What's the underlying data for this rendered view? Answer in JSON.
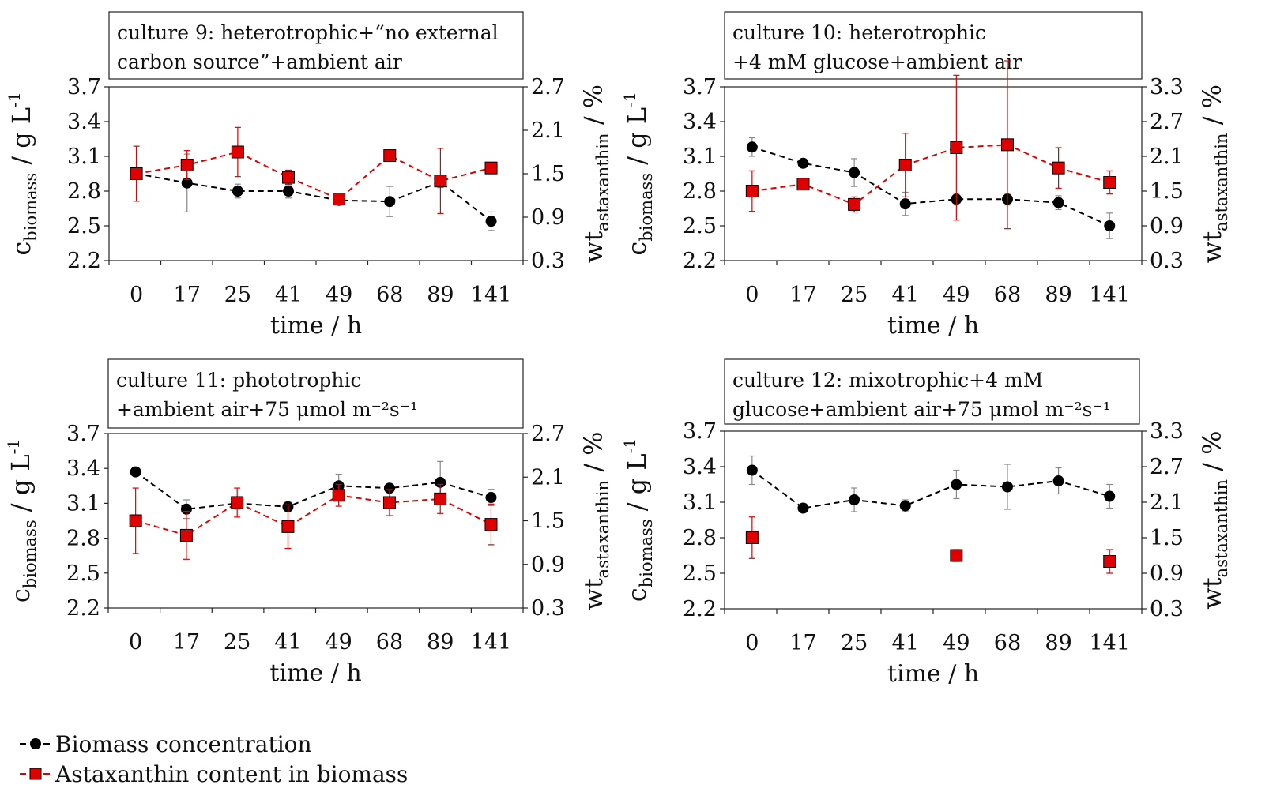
{
  "legend": {
    "biomass_label": "Biomass concentration",
    "astaxanthin_label": "Astaxanthin content in biomass"
  },
  "colors": {
    "biomass": "#000000",
    "astaxanthin": "#e00000",
    "error_bar_biomass": "#888888",
    "error_bar_astaxanthin": "#e00000"
  },
  "chart_data": [
    {
      "type": "line",
      "title_line1": "culture 9: heterotrophic+“no external",
      "title_line2": "carbon source”+ambient air",
      "xlabel": "time / h",
      "categories": [
        "0",
        "17",
        "25",
        "41",
        "49",
        "68",
        "89",
        "141"
      ],
      "ylabel_left_main": "c",
      "ylabel_left_sub": "biomass",
      "ylabel_left_tail": " / g L",
      "ylabel_left_sup": "-1",
      "ylabel_right_main": "wt",
      "ylabel_right_sub": "astaxanthin",
      "ylabel_right_tail": " / %",
      "ylim_left": [
        2.2,
        3.7
      ],
      "yticks_left": [
        "2.2",
        "2.5",
        "2.8",
        "3.1",
        "3.4",
        "3.7"
      ],
      "ylim_right": [
        0.3,
        2.7
      ],
      "yticks_right": [
        "0.3",
        "0.9",
        "1.5",
        "2.1",
        "2.7"
      ],
      "series": [
        {
          "name": "Biomass concentration",
          "axis": "left",
          "connected": true,
          "values": [
            2.95,
            2.87,
            2.8,
            2.8,
            2.72,
            2.71,
            2.88,
            2.54
          ],
          "errors": [
            0.05,
            0.25,
            0.06,
            0.06,
            0.03,
            0.13,
            0.05,
            0.08
          ]
        },
        {
          "name": "Astaxanthin content in biomass",
          "axis": "right",
          "connected": true,
          "values": [
            1.5,
            1.62,
            1.8,
            1.45,
            1.15,
            1.75,
            1.4,
            1.58
          ],
          "errors": [
            0.38,
            0.2,
            0.34,
            0.1,
            0.05,
            0.06,
            0.45,
            0.05
          ]
        }
      ]
    },
    {
      "type": "line",
      "title_line1": "culture 10: heterotrophic",
      "title_line2": "+4 mM glucose+ambient air",
      "xlabel": "time / h",
      "categories": [
        "0",
        "17",
        "25",
        "41",
        "49",
        "68",
        "89",
        "141"
      ],
      "ylabel_left_main": "c",
      "ylabel_left_sub": "biomass",
      "ylabel_left_tail": " / g L",
      "ylabel_left_sup": "-1",
      "ylabel_right_main": "wt",
      "ylabel_right_sub": "astaxanthin",
      "ylabel_right_tail": " / %",
      "ylim_left": [
        2.2,
        3.7
      ],
      "yticks_left": [
        "2.2",
        "2.5",
        "2.8",
        "3.1",
        "3.4",
        "3.7"
      ],
      "ylim_right": [
        0.3,
        3.3
      ],
      "yticks_right": [
        "0.3",
        "0.9",
        "1.5",
        "2.1",
        "2.7",
        "3.3"
      ],
      "series": [
        {
          "name": "Biomass concentration",
          "axis": "left",
          "connected": true,
          "values": [
            3.18,
            3.04,
            2.96,
            2.69,
            2.73,
            2.73,
            2.7,
            2.5
          ],
          "errors": [
            0.08,
            0.03,
            0.12,
            0.1,
            0.05,
            0.05,
            0.06,
            0.11
          ]
        },
        {
          "name": "Astaxanthin content in biomass",
          "axis": "right",
          "connected": true,
          "values": [
            1.5,
            1.62,
            1.27,
            1.95,
            2.25,
            2.3,
            1.9,
            1.65
          ],
          "errors": [
            0.35,
            0.05,
            0.13,
            0.55,
            1.25,
            1.45,
            0.35,
            0.2
          ]
        }
      ]
    },
    {
      "type": "line",
      "title_line1": "culture 11: phototrophic",
      "title_line2": "+ambient air+75 μmol m⁻²s⁻¹",
      "xlabel": "time / h",
      "categories": [
        "0",
        "17",
        "25",
        "41",
        "49",
        "68",
        "89",
        "141"
      ],
      "ylabel_left_main": "c",
      "ylabel_left_sub": "biomass",
      "ylabel_left_tail": " / g L",
      "ylabel_left_sup": "-1",
      "ylabel_right_main": "wt",
      "ylabel_right_sub": "astaxanthin",
      "ylabel_right_tail": " / %",
      "ylim_left": [
        2.2,
        3.7
      ],
      "yticks_left": [
        "2.2",
        "2.5",
        "2.8",
        "3.1",
        "3.4",
        "3.7"
      ],
      "ylim_right": [
        0.3,
        2.7
      ],
      "yticks_right": [
        "0.3",
        "0.9",
        "1.5",
        "2.1",
        "2.7"
      ],
      "series": [
        {
          "name": "Biomass concentration",
          "axis": "left",
          "connected": true,
          "values": [
            3.37,
            3.05,
            3.1,
            3.07,
            3.25,
            3.23,
            3.28,
            3.15
          ],
          "errors": [
            0.03,
            0.08,
            0.05,
            0.04,
            0.1,
            0.03,
            0.18,
            0.07
          ]
        },
        {
          "name": "Astaxanthin content in biomass",
          "axis": "right",
          "connected": true,
          "values": [
            1.5,
            1.3,
            1.75,
            1.42,
            1.85,
            1.75,
            1.8,
            1.45
          ],
          "errors": [
            0.45,
            0.33,
            0.2,
            0.3,
            0.15,
            0.18,
            0.2,
            0.28
          ]
        }
      ]
    },
    {
      "type": "line",
      "title_line1": "culture 12: mixotrophic+4 mM",
      "title_line2": "glucose+ambient air+75 μmol m⁻²s⁻¹",
      "xlabel": "time / h",
      "categories": [
        "0",
        "17",
        "25",
        "41",
        "49",
        "68",
        "89",
        "141"
      ],
      "ylabel_left_main": "c",
      "ylabel_left_sub": "biomass",
      "ylabel_left_tail": " / g L",
      "ylabel_left_sup": "-1",
      "ylabel_right_main": "wt",
      "ylabel_right_sub": "astaxanthin",
      "ylabel_right_tail": " / %",
      "ylim_left": [
        2.2,
        3.7
      ],
      "yticks_left": [
        "2.2",
        "2.5",
        "2.8",
        "3.1",
        "3.4",
        "3.7"
      ],
      "ylim_right": [
        0.3,
        3.3
      ],
      "yticks_right": [
        "0.3",
        "0.9",
        "1.5",
        "2.1",
        "2.7",
        "3.3"
      ],
      "series": [
        {
          "name": "Biomass concentration",
          "axis": "left",
          "connected": true,
          "values": [
            3.37,
            3.05,
            3.12,
            3.07,
            3.25,
            3.23,
            3.28,
            3.15
          ],
          "errors": [
            0.12,
            0.02,
            0.1,
            0.05,
            0.12,
            0.19,
            0.11,
            0.1
          ]
        },
        {
          "name": "Astaxanthin content in biomass",
          "axis": "right",
          "connected": false,
          "values": [
            1.5,
            null,
            null,
            null,
            1.2,
            null,
            null,
            1.1
          ],
          "errors": [
            0.35,
            null,
            null,
            null,
            0.1,
            null,
            null,
            0.2
          ]
        }
      ]
    }
  ]
}
